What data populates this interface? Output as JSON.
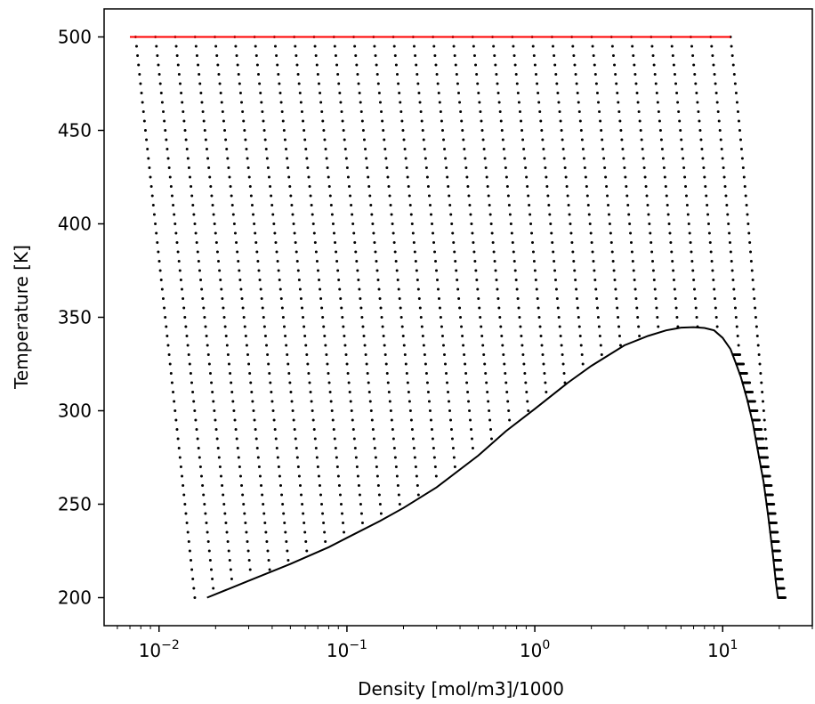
{
  "chart_data": {
    "type": "scatter",
    "title": "",
    "xlabel": "Density [mol/m3]/1000",
    "ylabel": "Temperature [K]",
    "xscale": "log",
    "xlim": [
      0.0051,
      30
    ],
    "ylim": [
      185,
      515
    ],
    "x_ticks": [
      {
        "value": 0.01,
        "base": "10",
        "exp": "−2"
      },
      {
        "value": 0.1,
        "base": "10",
        "exp": "−1"
      },
      {
        "value": 1,
        "base": "10",
        "exp": "0"
      },
      {
        "value": 10,
        "base": "10",
        "exp": "1"
      }
    ],
    "y_ticks": [
      200,
      250,
      300,
      350,
      400,
      450,
      500
    ],
    "grid": false,
    "legend": "none",
    "colors": {
      "points": "#000000",
      "envelope": "#000000",
      "isotherm_500": "#ff0000"
    },
    "isotherm_500": {
      "T": 500,
      "x_range": [
        0.007,
        11
      ]
    },
    "grid_points": {
      "T_range": [
        200,
        500
      ],
      "T_step": 5,
      "rho_min_at_200K": 0.0155,
      "rho_min_at_500K": 0.0075,
      "rho_max_at_500K": 11.0,
      "rho_max_at_350K": 15.0,
      "rho_max_at_200K": 19.6,
      "points_per_isotherm": 31
    },
    "envelope": {
      "x": [
        0.018,
        0.03,
        0.05,
        0.08,
        0.1,
        0.15,
        0.2,
        0.3,
        0.5,
        0.7,
        1.0,
        1.5,
        2.0,
        3.0,
        4.0,
        5.0,
        6.0,
        7.0,
        8.0,
        9.0,
        10.0,
        11.0,
        11.8,
        12.5,
        13.5,
        14.5,
        15.5,
        16.5,
        17.5,
        18.5,
        19.2,
        19.7
      ],
      "y": [
        200,
        209,
        218,
        227,
        232,
        241,
        248,
        259,
        276,
        289,
        301,
        315,
        324,
        335,
        340,
        343,
        344.5,
        344.7,
        344.3,
        343,
        339,
        333,
        325,
        318,
        306,
        293,
        277,
        262,
        243,
        223,
        208,
        200
      ]
    }
  }
}
